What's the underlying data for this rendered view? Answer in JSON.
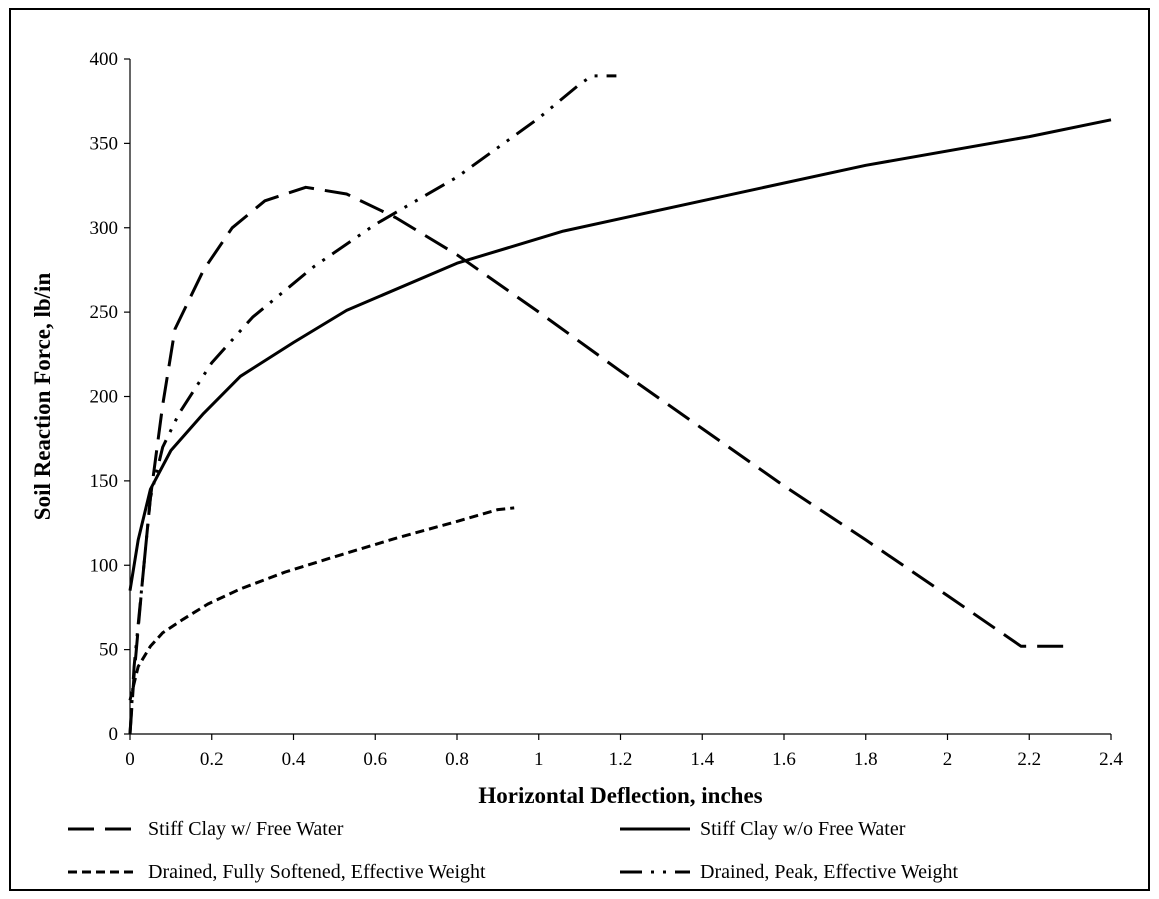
{
  "chart_data": {
    "type": "line",
    "xlabel": "Horizontal Deflection, inches",
    "ylabel": "Soil Reaction Force, lb/in",
    "xlim": [
      0,
      2.4
    ],
    "ylim": [
      0,
      400
    ],
    "x_ticks": [
      0,
      0.2,
      0.4,
      0.6,
      0.8,
      1,
      1.2,
      1.4,
      1.6,
      1.8,
      2,
      2.2,
      2.4
    ],
    "y_ticks": [
      0,
      50,
      100,
      150,
      200,
      250,
      300,
      350,
      400
    ],
    "grid": false,
    "legend_position": "bottom",
    "series": [
      {
        "name": "Stiff Clay w/ Free Water",
        "style": "long-dash",
        "color": "#000000",
        "points": [
          [
            0,
            0
          ],
          [
            0.01,
            35
          ],
          [
            0.03,
            90
          ],
          [
            0.05,
            140
          ],
          [
            0.08,
            195
          ],
          [
            0.11,
            240
          ],
          [
            0.18,
            275
          ],
          [
            0.25,
            300
          ],
          [
            0.33,
            316
          ],
          [
            0.43,
            324
          ],
          [
            0.53,
            320
          ],
          [
            0.65,
            306
          ],
          [
            0.8,
            284
          ],
          [
            1.0,
            250
          ],
          [
            1.2,
            215
          ],
          [
            1.4,
            181
          ],
          [
            1.6,
            147
          ],
          [
            1.8,
            115
          ],
          [
            2.0,
            82
          ],
          [
            2.18,
            52
          ],
          [
            2.3,
            52
          ]
        ]
      },
      {
        "name": "Stiff Clay w/o Free Water",
        "style": "solid",
        "color": "#000000",
        "points": [
          [
            0,
            85
          ],
          [
            0.02,
            115
          ],
          [
            0.05,
            145
          ],
          [
            0.1,
            168
          ],
          [
            0.18,
            190
          ],
          [
            0.27,
            212
          ],
          [
            0.4,
            232
          ],
          [
            0.53,
            251
          ],
          [
            0.8,
            279
          ],
          [
            1.06,
            298
          ],
          [
            1.4,
            316
          ],
          [
            1.8,
            337
          ],
          [
            2.2,
            354
          ],
          [
            2.4,
            364
          ]
        ]
      },
      {
        "name": "Drained, Fully Softened, Effective Weight",
        "style": "short-dash",
        "color": "#000000",
        "points": [
          [
            0,
            20
          ],
          [
            0.02,
            40
          ],
          [
            0.05,
            52
          ],
          [
            0.08,
            60
          ],
          [
            0.13,
            68
          ],
          [
            0.19,
            77
          ],
          [
            0.27,
            86
          ],
          [
            0.38,
            96
          ],
          [
            0.5,
            105
          ],
          [
            0.65,
            116
          ],
          [
            0.8,
            126
          ],
          [
            0.9,
            133
          ],
          [
            0.94,
            134
          ]
        ]
      },
      {
        "name": "Drained, Peak, Effective Weight",
        "style": "dash-dot-dot",
        "color": "#000000",
        "points": [
          [
            0,
            0
          ],
          [
            0.01,
            40
          ],
          [
            0.03,
            90
          ],
          [
            0.05,
            140
          ],
          [
            0.08,
            170
          ],
          [
            0.12,
            190
          ],
          [
            0.2,
            220
          ],
          [
            0.3,
            247
          ],
          [
            0.45,
            277
          ],
          [
            0.6,
            302
          ],
          [
            0.8,
            330
          ],
          [
            1.0,
            365
          ],
          [
            1.1,
            385
          ],
          [
            1.13,
            390
          ],
          [
            1.19,
            390
          ]
        ]
      }
    ]
  }
}
